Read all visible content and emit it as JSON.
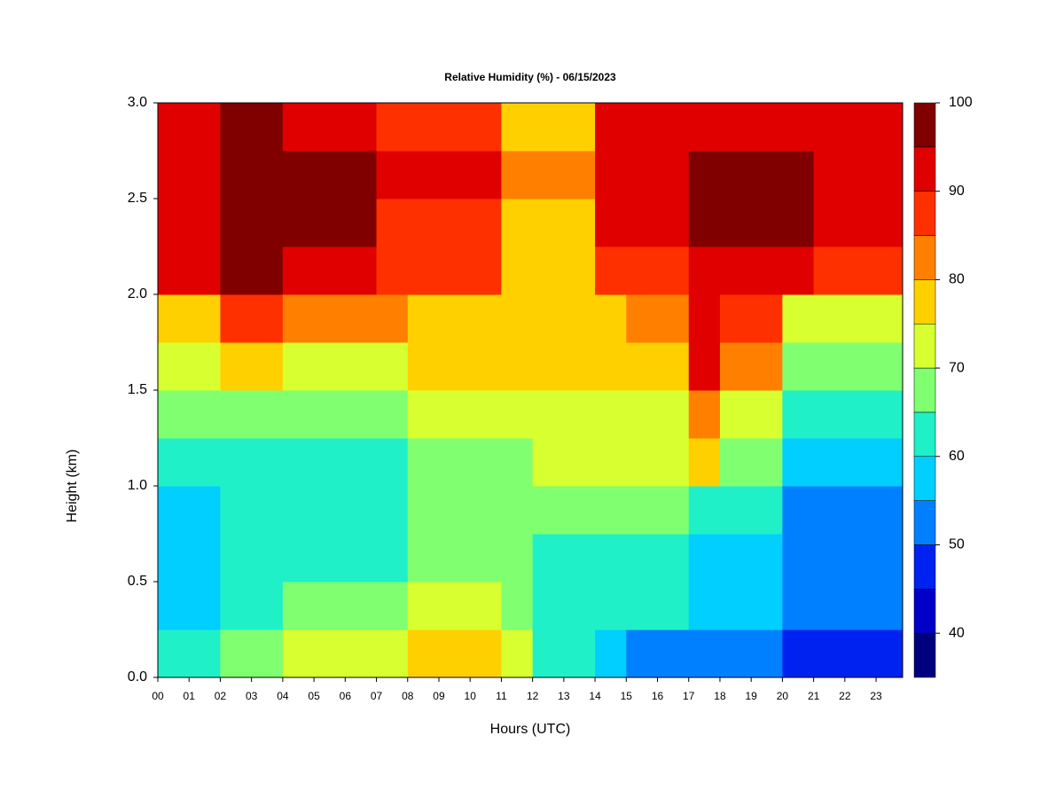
{
  "chart_data": {
    "type": "heatmap",
    "title": "Relative Humidity (%) - 06/15/2023",
    "x_label": "Hours (UTC)",
    "y_label": "Height (km)",
    "x": [
      0,
      1,
      2,
      3,
      4,
      5,
      6,
      7,
      8,
      9,
      10,
      11,
      12,
      13,
      14,
      15,
      16,
      17,
      18,
      19,
      20,
      21,
      22,
      23
    ],
    "y": [
      0,
      0.25,
      0.5,
      0.75,
      1,
      1.25,
      1.5,
      1.75,
      2,
      2.25,
      2.5,
      2.75
    ],
    "z": [
      [
        60,
        60,
        65,
        65,
        72,
        72,
        72,
        72,
        76,
        76,
        76,
        72,
        62,
        62,
        55,
        52,
        52,
        50,
        50,
        50,
        45,
        45,
        45,
        48
      ],
      [
        55,
        55,
        62,
        62,
        66,
        66,
        66,
        66,
        70,
        70,
        70,
        68,
        64,
        64,
        62,
        62,
        62,
        58,
        58,
        58,
        52,
        52,
        52,
        50
      ],
      [
        55,
        55,
        60,
        60,
        60,
        60,
        60,
        60,
        66,
        66,
        66,
        66,
        64,
        64,
        64,
        63,
        63,
        58,
        58,
        58,
        50,
        50,
        50,
        50
      ],
      [
        56,
        56,
        60,
        60,
        60,
        60,
        60,
        60,
        66,
        66,
        66,
        66,
        66,
        66,
        66,
        65,
        65,
        60,
        60,
        60,
        52,
        52,
        52,
        52
      ],
      [
        60,
        60,
        60,
        60,
        64,
        64,
        64,
        64,
        68,
        68,
        68,
        68,
        72,
        72,
        72,
        72,
        72,
        76,
        68,
        68,
        56,
        56,
        56,
        56
      ],
      [
        65,
        65,
        65,
        65,
        68,
        68,
        68,
        68,
        72,
        72,
        72,
        72,
        74,
        74,
        74,
        74,
        74,
        82,
        74,
        74,
        62,
        62,
        62,
        62
      ],
      [
        70,
        70,
        78,
        78,
        74,
        74,
        74,
        74,
        75,
        75,
        75,
        75,
        76,
        76,
        76,
        78,
        78,
        90,
        82,
        82,
        68,
        68,
        68,
        68
      ],
      [
        76,
        76,
        85,
        85,
        80,
        80,
        80,
        80,
        78,
        78,
        78,
        78,
        76,
        76,
        76,
        82,
        82,
        92,
        86,
        86,
        74,
        74,
        74,
        74
      ],
      [
        90,
        90,
        96,
        96,
        92,
        92,
        92,
        85,
        85,
        85,
        85,
        78,
        78,
        78,
        88,
        88,
        88,
        93,
        93,
        93,
        93,
        88,
        88,
        88
      ],
      [
        93,
        93,
        97,
        97,
        95,
        95,
        95,
        88,
        88,
        88,
        88,
        78,
        78,
        78,
        90,
        90,
        90,
        95,
        95,
        95,
        95,
        92,
        92,
        92
      ],
      [
        94,
        94,
        97,
        97,
        96,
        96,
        96,
        90,
        90,
        90,
        90,
        80,
        80,
        80,
        91,
        91,
        91,
        95,
        95,
        95,
        95,
        92,
        92,
        92
      ],
      [
        92,
        92,
        96,
        96,
        94,
        94,
        94,
        88,
        88,
        88,
        88,
        76,
        76,
        76,
        90,
        90,
        90,
        93,
        93,
        93,
        93,
        90,
        90,
        90
      ]
    ],
    "xlim": [
      0,
      23.85
    ],
    "ylim": [
      0,
      3
    ],
    "xticks": [
      {
        "value": 0,
        "label": "00"
      },
      {
        "value": 1,
        "label": "01"
      },
      {
        "value": 2,
        "label": "02"
      },
      {
        "value": 3,
        "label": "03"
      },
      {
        "value": 4,
        "label": "04"
      },
      {
        "value": 5,
        "label": "05"
      },
      {
        "value": 6,
        "label": "06"
      },
      {
        "value": 7,
        "label": "07"
      },
      {
        "value": 8,
        "label": "08"
      },
      {
        "value": 9,
        "label": "09"
      },
      {
        "value": 10,
        "label": "10"
      },
      {
        "value": 11,
        "label": "11"
      },
      {
        "value": 12,
        "label": "12"
      },
      {
        "value": 13,
        "label": "13"
      },
      {
        "value": 14,
        "label": "14"
      },
      {
        "value": 15,
        "label": "15"
      },
      {
        "value": 16,
        "label": "16"
      },
      {
        "value": 17,
        "label": "17"
      },
      {
        "value": 18,
        "label": "18"
      },
      {
        "value": 19,
        "label": "19"
      },
      {
        "value": 20,
        "label": "20"
      },
      {
        "value": 21,
        "label": "21"
      },
      {
        "value": 22,
        "label": "22"
      },
      {
        "value": 23,
        "label": "23"
      }
    ],
    "yticks": [
      {
        "value": 0,
        "label": "0.0"
      },
      0.5,
      {
        "value": 1,
        "label": "1.0"
      },
      1.5,
      {
        "value": 2,
        "label": "2.0"
      },
      2.5,
      {
        "value": 3,
        "label": "3.0"
      }
    ],
    "levels": [
      35,
      40,
      45,
      50,
      55,
      60,
      65,
      70,
      75,
      80,
      85,
      90,
      95,
      100
    ],
    "level_colors": [
      "#00007f",
      "#0000c8",
      "#0022f0",
      "#0080ff",
      "#00cfff",
      "#20f0c8",
      "#80ff70",
      "#d8ff30",
      "#ffd000",
      "#ff8000",
      "#ff3000",
      "#e00000",
      "#800000"
    ],
    "colorbar_lim": [
      35,
      100
    ],
    "colorbar_ticks": [
      40,
      50,
      60,
      70,
      80,
      90,
      100
    ]
  }
}
